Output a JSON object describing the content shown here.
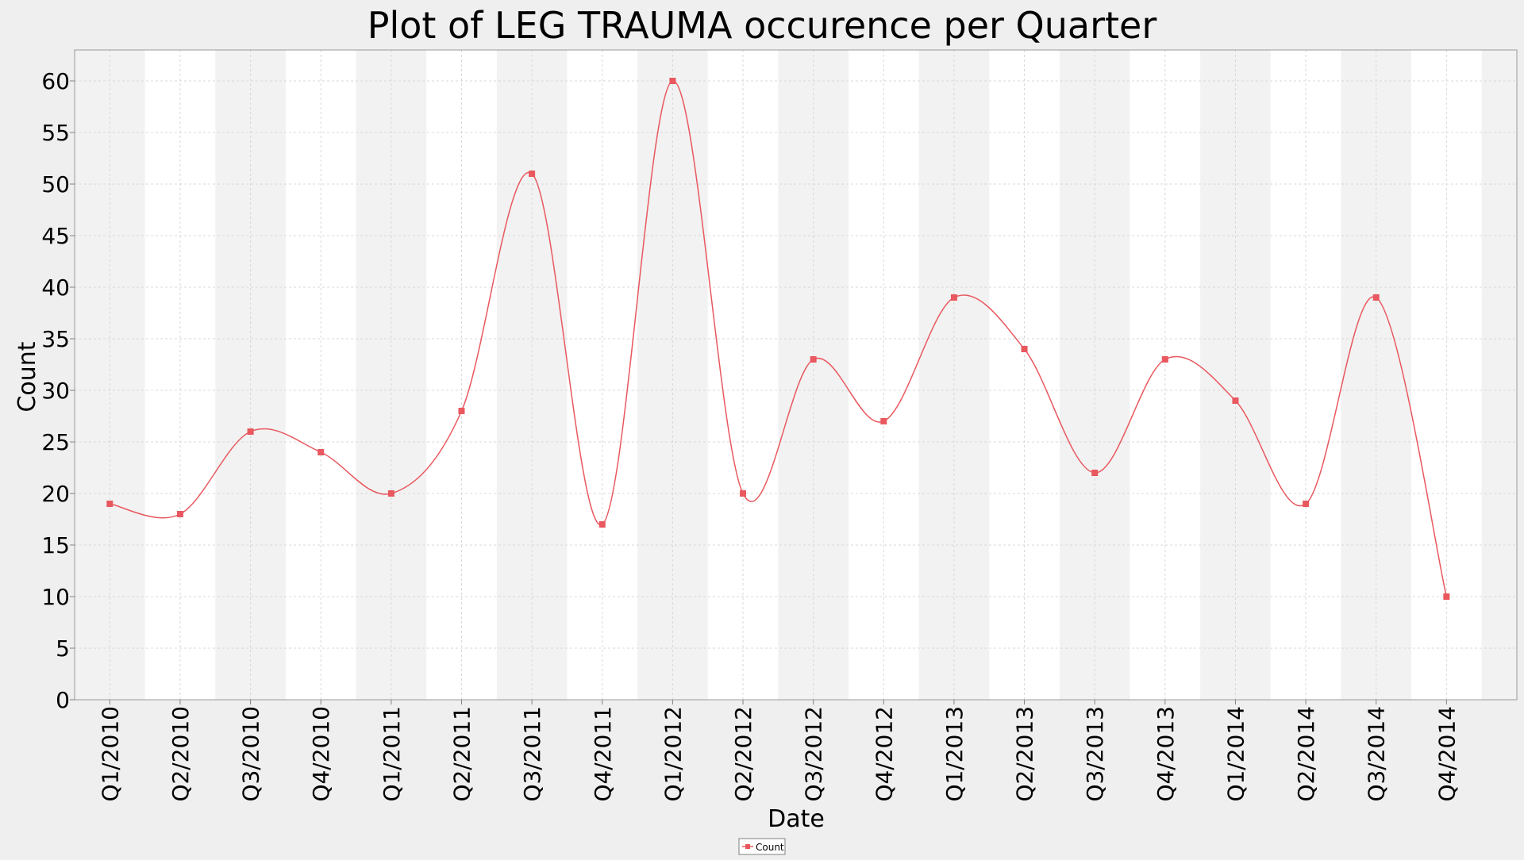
{
  "chart_data": {
    "type": "line",
    "title": "Plot of LEG TRAUMA occurence per Quarter",
    "xlabel": "Date",
    "ylabel": "Count",
    "categories": [
      "Q1/2010",
      "Q2/2010",
      "Q3/2010",
      "Q4/2010",
      "Q1/2011",
      "Q2/2011",
      "Q3/2011",
      "Q4/2011",
      "Q1/2012",
      "Q2/2012",
      "Q3/2012",
      "Q4/2012",
      "Q1/2013",
      "Q2/2013",
      "Q3/2013",
      "Q4/2013",
      "Q1/2014",
      "Q2/2014",
      "Q3/2014",
      "Q4/2014"
    ],
    "series": [
      {
        "name": "Count",
        "values": [
          19,
          18,
          26,
          24,
          20,
          28,
          51,
          17,
          60,
          20,
          33,
          27,
          39,
          34,
          22,
          33,
          29,
          19,
          39,
          10
        ],
        "color": "#e8585e"
      }
    ],
    "ylim": [
      0,
      63
    ],
    "yticks": [
      0,
      5,
      10,
      15,
      20,
      25,
      30,
      35,
      40,
      45,
      50,
      55,
      60
    ],
    "grid": true,
    "smoothed": true,
    "legend_position": "bottom-center",
    "colors": {
      "series": "#e8585e",
      "band_dark": "#f2f2f2",
      "band_light": "#ffffff",
      "grid": "#d8d8d8",
      "page_background": "#efefef"
    }
  }
}
